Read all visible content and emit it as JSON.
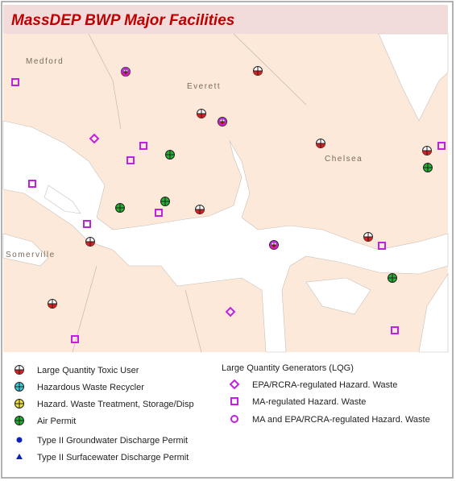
{
  "header": {
    "title": "MassDEP  BWP Major Facilities"
  },
  "map": {
    "places": [
      "Medford",
      "Everett",
      "Chelsea",
      "Somerville"
    ]
  },
  "legend": {
    "facilities": [
      "Large Quantity Toxic User",
      "Hazardous Waste Recycler",
      "Hazard. Waste Treatment, Storage/Disp",
      "Air Permit",
      "Type II Groundwater Discharge Permit",
      "Type II Surfacewater Discharge Permit"
    ],
    "lqg": {
      "title": "Large Quantity Generators (LQG)",
      "items": [
        "EPA/RCRA-regulated Hazard. Waste",
        "MA-regulated Hazard. Waste",
        "MA and EPA/RCRA-regulated Hazard. Waste"
      ]
    }
  }
}
